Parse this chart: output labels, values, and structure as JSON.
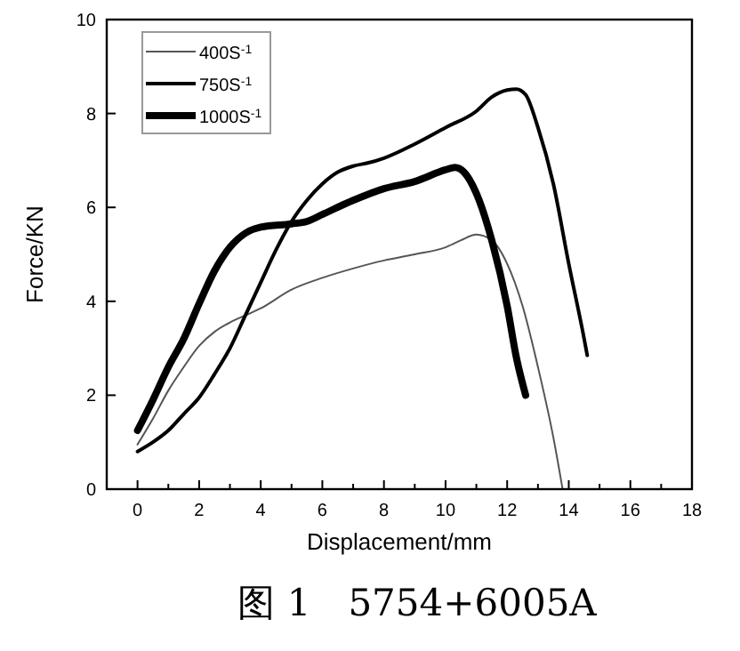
{
  "chart_data": {
    "type": "line",
    "xlabel": "Displacement/mm",
    "ylabel": "Force/KN",
    "annotations": [
      "图 1　5754+6005A"
    ],
    "xlim": [
      -1,
      18
    ],
    "xticks": [
      0,
      {
        "value": 1,
        "label": null
      },
      2,
      {
        "value": 3,
        "label": null
      },
      4,
      {
        "value": 5,
        "label": null
      },
      6,
      {
        "value": 7,
        "label": null
      },
      8,
      {
        "value": 9,
        "label": null
      },
      10,
      {
        "value": 11,
        "label": null
      },
      12,
      {
        "value": 13,
        "label": null
      },
      14,
      {
        "value": 15,
        "label": null
      },
      16,
      {
        "value": 17,
        "label": null
      },
      18
    ],
    "ylim": [
      0,
      10
    ],
    "yticks": [
      0,
      2,
      4,
      6,
      8,
      10
    ],
    "grid": false,
    "legend": "top left",
    "marker": "none",
    "line_style": "solid",
    "series": [
      {
        "name": "400S$^{-1}$",
        "color": "#555555",
        "x": [
          0,
          0.5,
          1,
          1.5,
          2,
          2.5,
          3,
          3.5,
          4,
          5,
          6,
          7,
          8,
          9,
          10,
          10.5,
          11,
          11.5,
          12,
          12.5,
          13,
          13.5,
          13.8
        ],
        "values": [
          0.95,
          1.5,
          2.1,
          2.6,
          3.05,
          3.35,
          3.55,
          3.7,
          3.85,
          4.25,
          4.5,
          4.7,
          4.87,
          5.0,
          5.15,
          5.3,
          5.42,
          5.3,
          4.8,
          3.9,
          2.6,
          1.1,
          0
        ]
      },
      {
        "name": "750S$^{-1}$",
        "color": "#000000",
        "x": [
          0,
          0.5,
          1,
          1.5,
          2,
          2.5,
          3,
          3.5,
          4,
          4.5,
          5,
          5.5,
          6,
          6.5,
          7,
          7.5,
          8,
          9,
          10,
          11,
          11.5,
          12,
          12.3,
          12.6,
          13,
          13.5,
          14,
          14.5,
          14.6
        ],
        "values": [
          0.8,
          1.0,
          1.25,
          1.6,
          1.95,
          2.45,
          3.0,
          3.7,
          4.4,
          5.1,
          5.7,
          6.15,
          6.5,
          6.75,
          6.88,
          6.95,
          7.05,
          7.35,
          7.7,
          8.05,
          8.35,
          8.5,
          8.52,
          8.4,
          7.7,
          6.5,
          4.8,
          3.2,
          2.85
        ]
      },
      {
        "name": "1000S$^{-1}$",
        "color": "#000000",
        "x": [
          0,
          0.5,
          1,
          1.5,
          2,
          2.5,
          3,
          3.5,
          4,
          5,
          5.5,
          6,
          7,
          8,
          9,
          10,
          10.3,
          10.6,
          11,
          11.5,
          12,
          12.3,
          12.6
        ],
        "values": [
          1.25,
          1.9,
          2.6,
          3.2,
          3.95,
          4.65,
          5.15,
          5.45,
          5.58,
          5.65,
          5.7,
          5.85,
          6.15,
          6.4,
          6.55,
          6.8,
          6.85,
          6.75,
          6.3,
          5.3,
          3.9,
          2.8,
          2.0
        ]
      }
    ]
  }
}
